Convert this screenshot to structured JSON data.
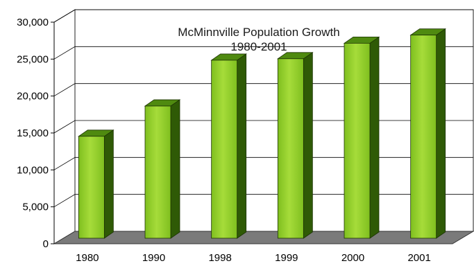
{
  "chart_data": {
    "type": "bar",
    "title": "McMinnville Population Growth",
    "subtitle": "1980-2001",
    "xlabel": "",
    "ylabel": "",
    "categories": [
      "1980",
      "1990",
      "1998",
      "1999",
      "2000",
      "2001"
    ],
    "values": [
      13800,
      17900,
      24100,
      24300,
      26400,
      27500
    ],
    "ylim": [
      0,
      30000
    ],
    "yticks": [
      0,
      5000,
      10000,
      15000,
      20000,
      25000,
      30000
    ],
    "ytick_labels": [
      "0",
      "5,000",
      "10,000",
      "15,000",
      "20,000",
      "25,000",
      "30,000"
    ],
    "grid": true,
    "legend": "none",
    "style": "3d",
    "colors": {
      "bar_front": "#7fbf1f",
      "bar_front_light": "#a6dc3a",
      "bar_side": "#2f5a06",
      "bar_top": "#4f8a10",
      "floor": "#7a7a7a",
      "grid": "#000000",
      "wall": "#ffffff"
    }
  }
}
